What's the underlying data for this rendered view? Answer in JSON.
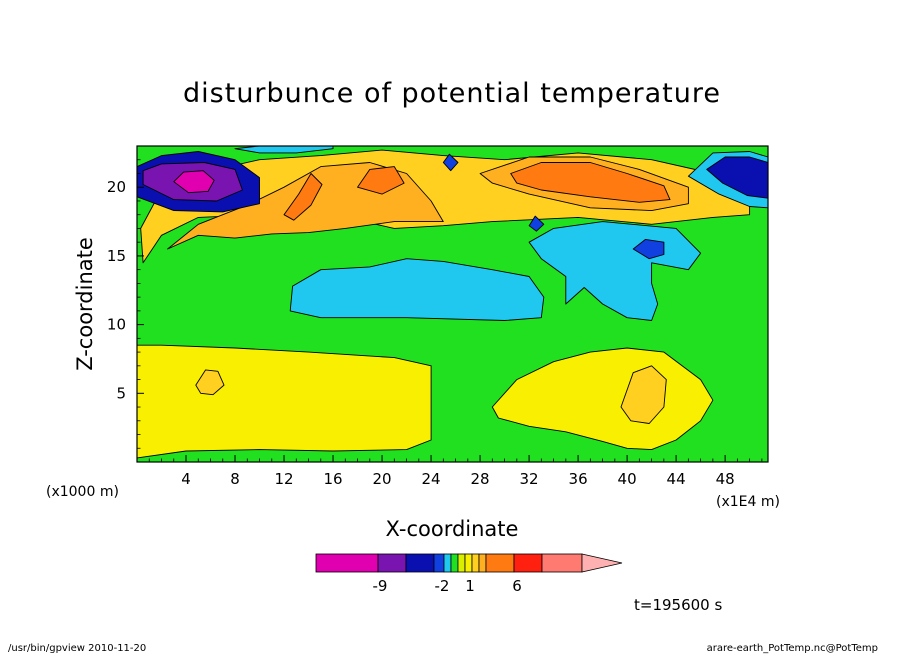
{
  "chart_data": {
    "type": "heatmap",
    "title": "disturbunce of potential temperature",
    "xlabel": "X-coordinate",
    "ylabel": "Z-coordinate",
    "x_unit_left": "(x1000 m)",
    "x_unit_right": "(x1E4 m)",
    "xlim": [
      0,
      51.5
    ],
    "ylim": [
      0,
      23
    ],
    "xticks": [
      4,
      8,
      12,
      16,
      20,
      24,
      28,
      32,
      36,
      40,
      44,
      48
    ],
    "yticks": [
      5,
      10,
      15,
      20
    ],
    "time_label": "t=195600 s",
    "footer_left": "/usr/bin/gpview   2010-11-20",
    "footer_right": "arare-earth_PotTemp.nc@PotTemp",
    "colorbar": {
      "colors": [
        "#e000b0",
        "#7a14b0",
        "#0a10b0",
        "#1040e0",
        "#20c8f0",
        "#20e020",
        "#d8f000",
        "#f8f000",
        "#ffd020",
        "#ffb020",
        "#ff7a10",
        "#ff2010",
        "#ff7a70",
        "#ffb0b0"
      ],
      "tick_labels": [
        "-9",
        "-2",
        "1",
        "6"
      ]
    },
    "background_level": "#20e020",
    "regions": [
      {
        "level": "#f8f000",
        "pts": [
          [
            0,
            0.3
          ],
          [
            4,
            0.8
          ],
          [
            10,
            0.9
          ],
          [
            16,
            0.8
          ],
          [
            22,
            0.9
          ],
          [
            24,
            1.6
          ],
          [
            24,
            7
          ],
          [
            21,
            7.6
          ],
          [
            14,
            8
          ],
          [
            8,
            8.3
          ],
          [
            2,
            8.5
          ],
          [
            0,
            8.5
          ]
        ]
      },
      {
        "level": "#f8f000",
        "pts": [
          [
            29,
            4
          ],
          [
            31,
            6
          ],
          [
            34,
            7.3
          ],
          [
            37,
            8
          ],
          [
            40,
            8.3
          ],
          [
            43,
            8
          ],
          [
            46,
            6
          ],
          [
            47,
            4.5
          ],
          [
            46,
            3
          ],
          [
            44,
            1.6
          ],
          [
            42,
            0.9
          ],
          [
            40,
            1
          ],
          [
            38,
            1.5
          ],
          [
            35,
            2.2
          ],
          [
            32,
            2.6
          ],
          [
            29.5,
            3.2
          ]
        ]
      },
      {
        "level": "#ffd020",
        "pts": [
          [
            4.8,
            5.6
          ],
          [
            5.6,
            6.7
          ],
          [
            6.6,
            6.6
          ],
          [
            7.1,
            5.6
          ],
          [
            6.2,
            4.9
          ],
          [
            5.2,
            5
          ]
        ]
      },
      {
        "level": "#ffd020",
        "pts": [
          [
            39.5,
            4
          ],
          [
            40.5,
            6.5
          ],
          [
            42,
            7
          ],
          [
            43.2,
            6
          ],
          [
            43,
            4
          ],
          [
            41.8,
            2.8
          ],
          [
            40.3,
            3
          ]
        ]
      },
      {
        "level": "#20c8f0",
        "pts": [
          [
            12.5,
            11
          ],
          [
            15,
            10.5
          ],
          [
            22,
            10.5
          ],
          [
            30,
            10.3
          ],
          [
            33,
            10.5
          ],
          [
            33.2,
            12
          ],
          [
            32,
            13.5
          ],
          [
            29,
            14
          ],
          [
            25,
            14.6
          ],
          [
            22,
            14.8
          ],
          [
            19,
            14.2
          ],
          [
            15,
            14
          ],
          [
            12.7,
            12.8
          ]
        ]
      },
      {
        "level": "#20c8f0",
        "pts": [
          [
            35,
            11.5
          ],
          [
            36.5,
            12.7
          ],
          [
            38,
            11.5
          ],
          [
            40,
            10.5
          ],
          [
            42,
            10.3
          ],
          [
            42.5,
            11.5
          ],
          [
            42,
            13
          ],
          [
            42,
            14.5
          ],
          [
            45,
            14
          ],
          [
            46,
            15.2
          ],
          [
            44,
            17
          ],
          [
            38,
            17.5
          ],
          [
            34,
            17
          ],
          [
            32,
            16
          ],
          [
            33,
            14.8
          ],
          [
            35,
            13.5
          ]
        ]
      },
      {
        "level": "#ffd020",
        "pts": [
          [
            0.5,
            14.5
          ],
          [
            2,
            16.5
          ],
          [
            5,
            17.8
          ],
          [
            10,
            18
          ],
          [
            14,
            17.5
          ],
          [
            17,
            17.8
          ],
          [
            21,
            17
          ],
          [
            25,
            17.2
          ],
          [
            29,
            17.5
          ],
          [
            36,
            17.8
          ],
          [
            42,
            17.3
          ],
          [
            47,
            17.8
          ],
          [
            50,
            18
          ],
          [
            50,
            19.5
          ],
          [
            47,
            21
          ],
          [
            42,
            22
          ],
          [
            36,
            22.5
          ],
          [
            30,
            22
          ],
          [
            25,
            22.3
          ],
          [
            20,
            22.7
          ],
          [
            15,
            22.3
          ],
          [
            10,
            22
          ],
          [
            5,
            21
          ],
          [
            1.5,
            19
          ],
          [
            0.3,
            17
          ]
        ]
      },
      {
        "level": "#ffb020",
        "pts": [
          [
            2.5,
            15.5
          ],
          [
            5,
            16.5
          ],
          [
            8,
            16.3
          ],
          [
            11,
            16.6
          ],
          [
            14,
            16.7
          ],
          [
            17,
            17
          ],
          [
            21,
            17.5
          ],
          [
            25,
            17.5
          ],
          [
            24,
            19
          ],
          [
            22,
            21
          ],
          [
            19,
            21.8
          ],
          [
            15,
            21.5
          ],
          [
            12,
            20
          ],
          [
            9,
            18.7
          ],
          [
            5,
            17.3
          ]
        ]
      },
      {
        "level": "#ff7a10",
        "pts": [
          [
            12,
            18
          ],
          [
            13.2,
            19.5
          ],
          [
            14.2,
            21
          ],
          [
            15.1,
            20.2
          ],
          [
            14.2,
            18.7
          ],
          [
            12.8,
            17.6
          ]
        ]
      },
      {
        "level": "#ff7a10",
        "pts": [
          [
            18,
            20
          ],
          [
            19,
            21.3
          ],
          [
            21,
            21.5
          ],
          [
            21.8,
            20.3
          ],
          [
            20,
            19.5
          ]
        ]
      },
      {
        "level": "#ffb020",
        "pts": [
          [
            28,
            21
          ],
          [
            32,
            22.2
          ],
          [
            37,
            22.2
          ],
          [
            41,
            21.3
          ],
          [
            45,
            20
          ],
          [
            45,
            18.8
          ],
          [
            42,
            18.3
          ],
          [
            37,
            18.5
          ],
          [
            32,
            19.5
          ],
          [
            29,
            20.3
          ]
        ]
      },
      {
        "level": "#ff7a10",
        "pts": [
          [
            30.5,
            21
          ],
          [
            33,
            21.8
          ],
          [
            37,
            21.8
          ],
          [
            40,
            21
          ],
          [
            43,
            20.1
          ],
          [
            43.5,
            19.1
          ],
          [
            41,
            18.9
          ],
          [
            37,
            19.3
          ],
          [
            33,
            19.8
          ],
          [
            31,
            20.3
          ]
        ]
      },
      {
        "level": "#0a10b0",
        "pts": [
          [
            0,
            19.3
          ],
          [
            3,
            18.3
          ],
          [
            7,
            18.2
          ],
          [
            10,
            18.8
          ],
          [
            10,
            20.7
          ],
          [
            8,
            22
          ],
          [
            5,
            22.6
          ],
          [
            2,
            22.3
          ],
          [
            0,
            21.5
          ]
        ]
      },
      {
        "level": "#7a14b0",
        "pts": [
          [
            0.5,
            20.2
          ],
          [
            3,
            19.1
          ],
          [
            6.5,
            19
          ],
          [
            8.6,
            19.8
          ],
          [
            8,
            21.3
          ],
          [
            5.5,
            21.8
          ],
          [
            2,
            21.7
          ],
          [
            0.5,
            21.2
          ]
        ]
      },
      {
        "level": "#e000b0",
        "pts": [
          [
            3,
            20.4
          ],
          [
            4.2,
            19.6
          ],
          [
            5.8,
            19.7
          ],
          [
            6.3,
            20.5
          ],
          [
            5.4,
            21.2
          ],
          [
            3.8,
            21.1
          ]
        ]
      },
      {
        "level": "#20c8f0",
        "pts": [
          [
            45,
            20.8
          ],
          [
            47,
            22.5
          ],
          [
            50,
            22.6
          ],
          [
            51.5,
            22.2
          ],
          [
            51.5,
            18.5
          ],
          [
            50,
            18.6
          ],
          [
            47.5,
            19.5
          ]
        ]
      },
      {
        "level": "#0a10b0",
        "pts": [
          [
            46.5,
            21.3
          ],
          [
            48,
            22.2
          ],
          [
            50,
            22.2
          ],
          [
            51.5,
            21.8
          ],
          [
            51.5,
            19.2
          ],
          [
            49.8,
            19.4
          ],
          [
            47.8,
            20.3
          ]
        ]
      },
      {
        "level": "#1040e0",
        "pts": [
          [
            32,
            17.2
          ],
          [
            32.5,
            17.9
          ],
          [
            33.2,
            17.3
          ],
          [
            32.6,
            16.8
          ]
        ]
      },
      {
        "level": "#1040e0",
        "pts": [
          [
            40.5,
            15.5
          ],
          [
            41.5,
            16.2
          ],
          [
            43,
            16
          ],
          [
            43,
            15.1
          ],
          [
            41.8,
            14.8
          ]
        ]
      },
      {
        "level": "#1040e0",
        "pts": [
          [
            25,
            21.8
          ],
          [
            25.5,
            22.4
          ],
          [
            26.2,
            21.8
          ],
          [
            25.6,
            21.2
          ]
        ]
      },
      {
        "level": "#20c8f0",
        "pts": [
          [
            8,
            22.8
          ],
          [
            10,
            23
          ],
          [
            14,
            23
          ],
          [
            16,
            23
          ],
          [
            16,
            22.8
          ],
          [
            13,
            22.5
          ],
          [
            10,
            22.5
          ]
        ]
      }
    ]
  }
}
